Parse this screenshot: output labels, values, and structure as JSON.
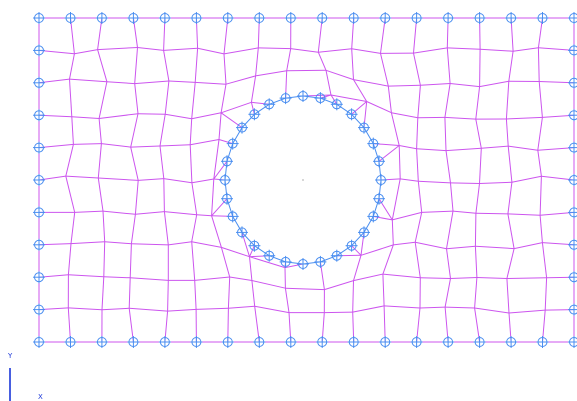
{
  "mesh": {
    "edge_color": "#cc55ee",
    "node_color": "#4a8ef0",
    "hole_node_color": "#4a8ef0",
    "center_marker_color": "#bbbbbb"
  },
  "axes": {
    "color": "#1a36d8",
    "y_label": "Y",
    "x_label": "X"
  }
}
